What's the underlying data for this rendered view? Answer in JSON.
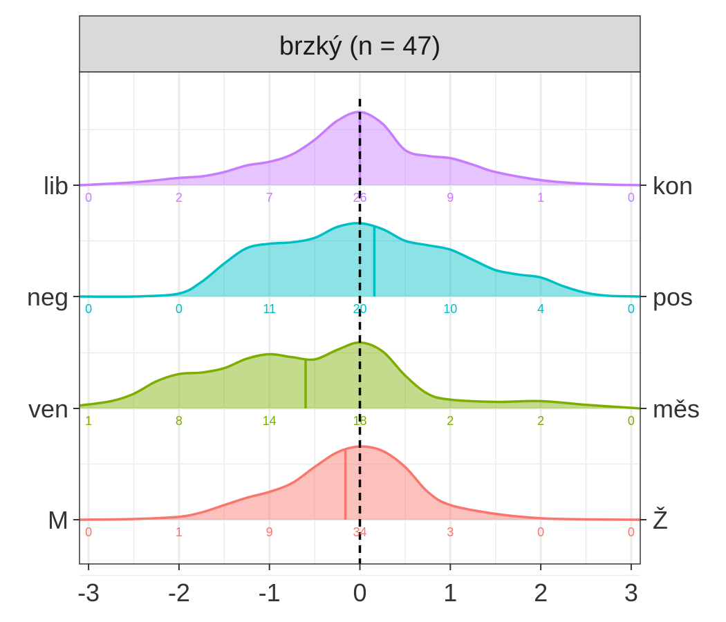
{
  "chart_data": {
    "type": "area",
    "subtype": "ridgeline-density",
    "facet_title": "brzký (n = 47)",
    "xlim": [
      -3.1,
      3.1
    ],
    "x_ticks": [
      -3,
      -2,
      -1,
      0,
      1,
      2,
      3
    ],
    "x_tick_labels": [
      "-3",
      "-2",
      "-1",
      "0",
      "1",
      "2",
      "3"
    ],
    "grid": true,
    "reference_line_x": 0,
    "count_bins_x": [
      -3,
      -2,
      -1,
      0,
      1,
      2,
      3
    ],
    "series": [
      {
        "left_label": "M",
        "right_label": "Ž",
        "color": "#F8766D",
        "mean": -0.16,
        "counts": [
          "0",
          "1",
          "9",
          "34",
          "3",
          "0",
          "0"
        ],
        "density_x": [
          -3.1,
          -2.5,
          -2,
          -1.75,
          -1.5,
          -1.25,
          -1,
          -0.75,
          -0.5,
          -0.25,
          0,
          0.25,
          0.5,
          0.75,
          1,
          1.5,
          2,
          2.5,
          3.1
        ],
        "density_y": [
          0,
          0.01,
          0.04,
          0.1,
          0.2,
          0.3,
          0.38,
          0.5,
          0.72,
          0.92,
          1.0,
          0.94,
          0.72,
          0.38,
          0.2,
          0.08,
          0.02,
          0.005,
          0
        ]
      },
      {
        "left_label": "ven",
        "right_label": "měs",
        "color": "#7CAE00",
        "mean": -0.6,
        "counts": [
          "1",
          "8",
          "14",
          "18",
          "2",
          "2",
          "0"
        ],
        "density_x": [
          -3.1,
          -2.75,
          -2.5,
          -2.25,
          -2,
          -1.75,
          -1.5,
          -1.25,
          -1,
          -0.75,
          -0.5,
          -0.25,
          0,
          0.25,
          0.5,
          0.75,
          1,
          1.5,
          2,
          2.5,
          3.1
        ],
        "density_y": [
          0.04,
          0.1,
          0.2,
          0.37,
          0.47,
          0.49,
          0.55,
          0.68,
          0.74,
          0.7,
          0.67,
          0.8,
          0.9,
          0.78,
          0.45,
          0.2,
          0.12,
          0.09,
          0.1,
          0.05,
          0
        ]
      },
      {
        "left_label": "neg",
        "right_label": "pos",
        "color": "#00BFC4",
        "mean": 0.16,
        "counts": [
          "0",
          "0",
          "11",
          "20",
          "10",
          "4",
          "0"
        ],
        "density_x": [
          -3.1,
          -2.5,
          -2,
          -1.75,
          -1.5,
          -1.25,
          -1,
          -0.75,
          -0.5,
          -0.25,
          0,
          0.25,
          0.5,
          0.75,
          1,
          1.25,
          1.5,
          1.75,
          2,
          2.25,
          2.5,
          2.75,
          3.1
        ],
        "density_y": [
          0,
          0,
          0.04,
          0.2,
          0.45,
          0.66,
          0.72,
          0.74,
          0.8,
          0.95,
          1.0,
          0.92,
          0.76,
          0.7,
          0.64,
          0.5,
          0.36,
          0.3,
          0.26,
          0.14,
          0.05,
          0.01,
          0
        ]
      },
      {
        "left_label": "lib",
        "right_label": "kon",
        "color": "#C77CFF",
        "mean": 0.0,
        "counts": [
          "0",
          "2",
          "7",
          "26",
          "9",
          "1",
          "0"
        ],
        "density_x": [
          -3.1,
          -2.5,
          -2,
          -1.75,
          -1.5,
          -1.25,
          -1,
          -0.75,
          -0.5,
          -0.25,
          0,
          0.25,
          0.5,
          0.75,
          1,
          1.25,
          1.5,
          2,
          2.5,
          3.1
        ],
        "density_y": [
          0,
          0.04,
          0.1,
          0.12,
          0.18,
          0.27,
          0.32,
          0.42,
          0.62,
          0.88,
          1.0,
          0.84,
          0.48,
          0.4,
          0.37,
          0.28,
          0.18,
          0.07,
          0.02,
          0
        ]
      }
    ]
  }
}
